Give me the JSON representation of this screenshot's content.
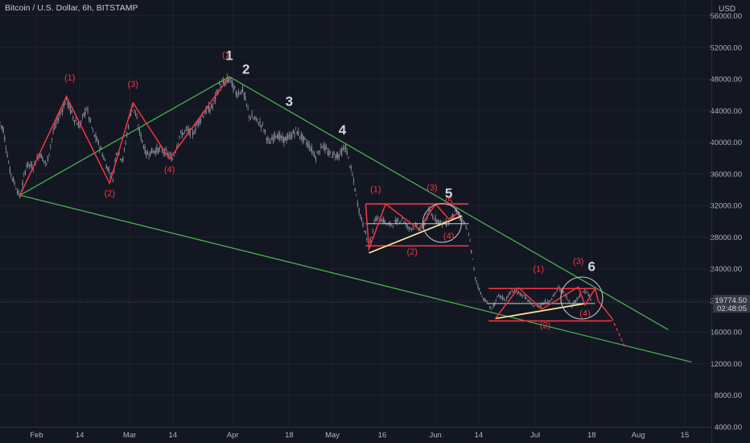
{
  "header": {
    "symbol_title": "Bitcoin / U.S. Dollar, 6h, BITSTAMP",
    "currency": "USD"
  },
  "price_tag": {
    "price": "19774.50",
    "countdown": "02:48:05"
  },
  "colors": {
    "background": "#131722",
    "candles": "#8a8e99",
    "wave_red": "#f23645",
    "trend_green": "#4caf50",
    "support_yellow": "#f5e29a",
    "label_white": "#d1d4dc",
    "axis_text": "#b2b5be",
    "price_tag_bg": "#363a45"
  },
  "chart_data": {
    "type": "line",
    "y_axis": {
      "ylim": [
        4000,
        58000
      ],
      "ticks": [
        4000,
        8000,
        12000,
        16000,
        20000,
        24000,
        28000,
        32000,
        36000,
        40000,
        44000,
        48000,
        52000,
        56000
      ],
      "tick_labels": [
        "4000.00",
        "8000.00",
        "12000.00",
        "16000.00",
        "20000.00",
        "24000.00",
        "28000.00",
        "32000.00",
        "36000.00",
        "40000.00",
        "44000.00",
        "48000.00",
        "52000.00",
        "56000.00"
      ]
    },
    "x_axis": {
      "xlim": [
        "2022-01-21",
        "2022-08-23"
      ],
      "ticks": [
        "2022-02-01",
        "2022-02-14",
        "2022-03-01",
        "2022-03-14",
        "2022-04-01",
        "2022-04-18",
        "2022-05-01",
        "2022-05-16",
        "2022-06-01",
        "2022-06-14",
        "2022-07-01",
        "2022-07-18",
        "2022-08-01",
        "2022-08-15"
      ],
      "tick_labels": [
        "Feb",
        "14",
        "Mar",
        "14",
        "Apr",
        "18",
        "May",
        "16",
        "Jun",
        "14",
        "Jul",
        "18",
        "Aug",
        "15"
      ]
    },
    "price_series": [
      [
        "2022-01-21",
        42500
      ],
      [
        "2022-01-22",
        41600
      ],
      [
        "2022-01-24",
        36400
      ],
      [
        "2022-01-25",
        35200
      ],
      [
        "2022-01-27",
        33100
      ],
      [
        "2022-01-29",
        37200
      ],
      [
        "2022-01-31",
        36900
      ],
      [
        "2022-02-02",
        38600
      ],
      [
        "2022-02-04",
        37100
      ],
      [
        "2022-02-06",
        41300
      ],
      [
        "2022-02-08",
        43600
      ],
      [
        "2022-02-10",
        45400
      ],
      [
        "2022-02-12",
        43200
      ],
      [
        "2022-02-14",
        42000
      ],
      [
        "2022-02-16",
        44400
      ],
      [
        "2022-02-18",
        41200
      ],
      [
        "2022-02-20",
        39500
      ],
      [
        "2022-02-22",
        37100
      ],
      [
        "2022-02-24",
        35400
      ],
      [
        "2022-02-25",
        38900
      ],
      [
        "2022-02-27",
        37800
      ],
      [
        "2022-03-01",
        43200
      ],
      [
        "2022-03-02",
        44800
      ],
      [
        "2022-03-04",
        41300
      ],
      [
        "2022-03-06",
        38500
      ],
      [
        "2022-03-08",
        38900
      ],
      [
        "2022-03-10",
        39100
      ],
      [
        "2022-03-12",
        38700
      ],
      [
        "2022-03-14",
        37900
      ],
      [
        "2022-03-16",
        40800
      ],
      [
        "2022-03-18",
        41500
      ],
      [
        "2022-03-20",
        41100
      ],
      [
        "2022-03-22",
        42900
      ],
      [
        "2022-03-24",
        44000
      ],
      [
        "2022-03-26",
        44500
      ],
      [
        "2022-03-28",
        47200
      ],
      [
        "2022-03-30",
        47600
      ],
      [
        "2022-03-31",
        48100
      ],
      [
        "2022-04-02",
        46200
      ],
      [
        "2022-04-04",
        46600
      ],
      [
        "2022-04-06",
        43400
      ],
      [
        "2022-04-08",
        42800
      ],
      [
        "2022-04-10",
        42100
      ],
      [
        "2022-04-12",
        39800
      ],
      [
        "2022-04-14",
        41100
      ],
      [
        "2022-04-16",
        40300
      ],
      [
        "2022-04-18",
        40600
      ],
      [
        "2022-04-20",
        41500
      ],
      [
        "2022-04-22",
        40500
      ],
      [
        "2022-04-24",
        39600
      ],
      [
        "2022-04-26",
        38200
      ],
      [
        "2022-04-28",
        39700
      ],
      [
        "2022-04-30",
        38500
      ],
      [
        "2022-05-03",
        38400
      ],
      [
        "2022-05-05",
        39400
      ],
      [
        "2022-05-07",
        35800
      ],
      [
        "2022-05-09",
        31400
      ],
      [
        "2022-05-11",
        28400
      ],
      [
        "2022-05-12",
        26800
      ],
      [
        "2022-05-14",
        30400
      ],
      [
        "2022-05-16",
        30200
      ],
      [
        "2022-05-18",
        29500
      ],
      [
        "2022-05-20",
        29900
      ],
      [
        "2022-05-22",
        30300
      ],
      [
        "2022-05-24",
        29100
      ],
      [
        "2022-05-26",
        29400
      ],
      [
        "2022-05-28",
        28900
      ],
      [
        "2022-05-30",
        31200
      ],
      [
        "2022-06-01",
        30300
      ],
      [
        "2022-06-03",
        29700
      ],
      [
        "2022-06-05",
        29800
      ],
      [
        "2022-06-07",
        31300
      ],
      [
        "2022-06-09",
        30200
      ],
      [
        "2022-06-11",
        28500
      ],
      [
        "2022-06-13",
        22800
      ],
      [
        "2022-06-15",
        20500
      ],
      [
        "2022-06-18",
        18900
      ],
      [
        "2022-06-20",
        20600
      ],
      [
        "2022-06-22",
        20100
      ],
      [
        "2022-06-24",
        21200
      ],
      [
        "2022-06-26",
        21000
      ],
      [
        "2022-06-28",
        20400
      ],
      [
        "2022-06-30",
        19400
      ],
      [
        "2022-07-02",
        19300
      ],
      [
        "2022-07-04",
        19800
      ],
      [
        "2022-07-06",
        20200
      ],
      [
        "2022-07-08",
        21600
      ],
      [
        "2022-07-10",
        20800
      ],
      [
        "2022-07-12",
        19300
      ],
      [
        "2022-07-14",
        20500
      ],
      [
        "2022-07-16",
        21200
      ],
      [
        "2022-07-17",
        20800
      ],
      [
        "2022-07-18",
        19774
      ]
    ],
    "annotations": {
      "wave_labels_white": [
        {
          "text": "1",
          "date": "2022-03-31",
          "price": 50400
        },
        {
          "text": "2",
          "date": "2022-04-05",
          "price": 48700
        },
        {
          "text": "3",
          "date": "2022-04-18",
          "price": 44600
        },
        {
          "text": "4",
          "date": "2022-05-04",
          "price": 41000
        },
        {
          "text": "5",
          "date": "2022-06-05",
          "price": 33000
        },
        {
          "text": "6",
          "date": "2022-07-18",
          "price": 23700
        }
      ],
      "wave_labels_red": [
        {
          "text": "(1)",
          "date": "2022-02-11",
          "price": 47800
        },
        {
          "text": "(2)",
          "date": "2022-02-23",
          "price": 33200
        },
        {
          "text": "(3)",
          "date": "2022-03-02",
          "price": 47000
        },
        {
          "text": "(4)",
          "date": "2022-03-13",
          "price": 36200
        },
        {
          "text": "(1",
          "date": "2022-03-30",
          "price": 50700
        },
        {
          "text": "(1)",
          "date": "2022-05-14",
          "price": 33700
        },
        {
          "text": "(2)",
          "date": "2022-05-25",
          "price": 25800
        },
        {
          "text": "(3)",
          "date": "2022-05-31",
          "price": 33900
        },
        {
          "text": "(4)",
          "date": "2022-06-05",
          "price": 27800
        },
        {
          "text": "(5",
          "date": "2022-06-05",
          "price": 32200
        },
        {
          "text": "(1)",
          "date": "2022-07-02",
          "price": 23600
        },
        {
          "text": "(2)",
          "date": "2022-07-04",
          "price": 16500
        },
        {
          "text": "(3)",
          "date": "2022-07-14",
          "price": 24600
        },
        {
          "text": "(4)",
          "date": "2022-07-16",
          "price": 18000
        }
      ],
      "red_zigzag": [
        [
          [
            "2022-01-27",
            33300
          ],
          [
            "2022-02-10",
            45800
          ],
          [
            "2022-02-23",
            34800
          ],
          [
            "2022-03-02",
            45000
          ],
          [
            "2022-03-13",
            37900
          ],
          [
            "2022-03-31",
            48300
          ]
        ],
        [
          [
            "2022-05-11",
            32200
          ],
          [
            "2022-05-12",
            26500
          ],
          [
            "2022-05-17",
            32200
          ],
          [
            "2022-05-27",
            29000
          ],
          [
            "2022-06-01",
            32200
          ],
          [
            "2022-06-05",
            30300
          ],
          [
            "2022-06-08",
            31100
          ]
        ],
        [
          [
            "2022-06-19",
            17700
          ],
          [
            "2022-06-26",
            21600
          ],
          [
            "2022-07-03",
            18900
          ],
          [
            "2022-07-14",
            21700
          ],
          [
            "2022-07-16",
            19400
          ],
          [
            "2022-07-19",
            21500
          ],
          [
            "2022-07-20",
            19900
          ],
          [
            "2022-07-24",
            17800
          ]
        ]
      ],
      "red_dashed_tail": [
        [
          "2022-07-24",
          17800
        ],
        [
          "2022-07-28",
          14100
        ]
      ],
      "red_horizontal_levels": [
        {
          "price": 32200,
          "from": "2022-05-11",
          "to": "2022-06-11"
        },
        {
          "price": 26900,
          "from": "2022-05-11",
          "to": "2022-06-11"
        },
        {
          "price": 21500,
          "from": "2022-06-17",
          "to": "2022-07-19"
        },
        {
          "price": 17400,
          "from": "2022-06-17",
          "to": "2022-07-24"
        }
      ],
      "white_horizontal_levels": [
        {
          "price": 29700,
          "from": "2022-05-11",
          "to": "2022-06-11"
        },
        {
          "price": 19600,
          "from": "2022-06-17",
          "to": "2022-07-19"
        }
      ],
      "green_trendlines": [
        [
          [
            "2022-01-27",
            33300
          ],
          [
            "2022-03-31",
            48300
          ]
        ],
        [
          [
            "2022-03-31",
            48300
          ],
          [
            "2022-08-10",
            16300
          ]
        ],
        [
          [
            "2022-01-27",
            33300
          ],
          [
            "2022-08-17",
            12200
          ]
        ]
      ],
      "yellow_supports": [
        [
          [
            "2022-05-12",
            26000
          ],
          [
            "2022-06-09",
            30700
          ]
        ],
        [
          [
            "2022-06-19",
            17700
          ],
          [
            "2022-07-16",
            19600
          ]
        ]
      ],
      "circles": [
        {
          "date": "2022-06-03",
          "price": 29800,
          "r": 24
        },
        {
          "date": "2022-07-15",
          "price": 20300,
          "r": 26
        }
      ]
    }
  }
}
